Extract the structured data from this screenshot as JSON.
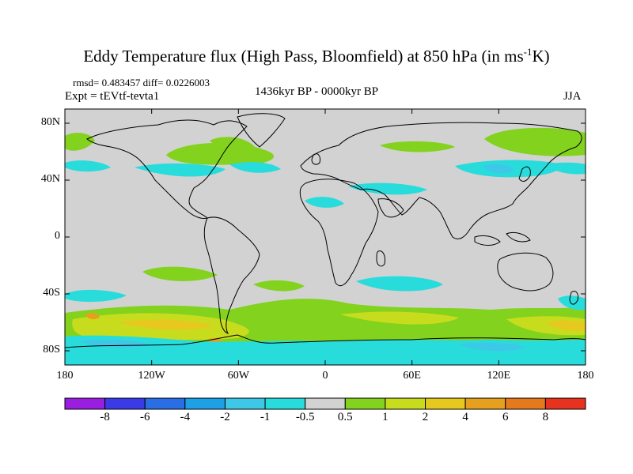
{
  "title": {
    "main": "Eddy Temperature flux (High Pass, Bloomfield) at 850 hPa (in ms",
    "sup": "-1",
    "tail": "K)"
  },
  "info": {
    "stats": "rmsd= 0.483457 diff= 0.0226003",
    "expt": "Expt = tEVtf-tevta1",
    "period": "1436kyr BP - 0000kyr BP",
    "season": "JJA"
  },
  "axes": {
    "lat_labels": [
      "80N",
      "40N",
      "0",
      "40S",
      "80S"
    ],
    "lon_labels": [
      "180",
      "120W",
      "60W",
      "0",
      "60E",
      "120E",
      "180"
    ]
  },
  "colorbar": {
    "labels": [
      "-8",
      "-6",
      "-4",
      "-2",
      "-1",
      "-0.5",
      "0.5",
      "1",
      "2",
      "4",
      "6",
      "8"
    ],
    "colors": [
      "#9a1ee0",
      "#3a3ae6",
      "#2a6ee6",
      "#1ea0e6",
      "#3cc8e6",
      "#28dcdc",
      "#d2d2d2",
      "#82d21e",
      "#c8dc1e",
      "#e6c81e",
      "#e6a01e",
      "#e6781e",
      "#e6321e"
    ]
  },
  "colors": {
    "ocean": "#d2d2d2",
    "coast": "#000000"
  }
}
